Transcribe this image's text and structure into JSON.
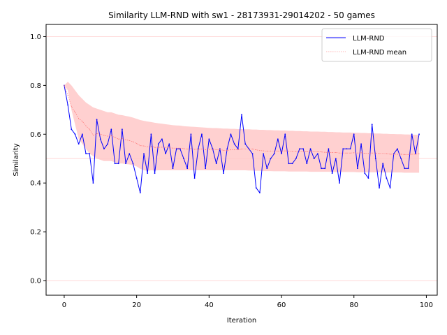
{
  "chart_data": {
    "type": "line",
    "title": "Similarity LLM-RND with sw1 - 28173931-29014202 - 50 games",
    "xlabel": "Iteration",
    "ylabel": "Similarity",
    "xlim": [
      -5,
      103
    ],
    "ylim": [
      -0.06,
      1.05
    ],
    "xticks": [
      0,
      20,
      40,
      60,
      80,
      100
    ],
    "yticks": [
      0.0,
      0.2,
      0.4,
      0.6,
      0.8,
      1.0
    ],
    "xtick_labels": [
      "0",
      "20",
      "40",
      "60",
      "80",
      "100"
    ],
    "ytick_labels": [
      "0.0",
      "0.2",
      "0.4",
      "0.6",
      "0.8",
      "1.0"
    ],
    "reference_lines": [
      0.0,
      0.5,
      1.0
    ],
    "grid": false,
    "legend_position": "top-right",
    "colors": {
      "series": "#0000ff",
      "mean": "#ff6b6b",
      "band": "#ffc8c8",
      "reference": "#ffd9d9"
    },
    "x": [
      0,
      1,
      2,
      3,
      4,
      5,
      6,
      7,
      8,
      9,
      10,
      11,
      12,
      13,
      14,
      15,
      16,
      17,
      18,
      19,
      20,
      21,
      22,
      23,
      24,
      25,
      26,
      27,
      28,
      29,
      30,
      31,
      32,
      33,
      34,
      35,
      36,
      37,
      38,
      39,
      40,
      41,
      42,
      43,
      44,
      45,
      46,
      47,
      48,
      49,
      50,
      51,
      52,
      53,
      54,
      55,
      56,
      57,
      58,
      59,
      60,
      61,
      62,
      63,
      64,
      65,
      66,
      67,
      68,
      69,
      70,
      71,
      72,
      73,
      74,
      75,
      76,
      77,
      78,
      79,
      80,
      81,
      82,
      83,
      84,
      85,
      86,
      87,
      88,
      89,
      90,
      91,
      92,
      93,
      94,
      95,
      96,
      97,
      98
    ],
    "series": [
      {
        "name": "LLM-RND",
        "values": [
          0.8,
          0.72,
          0.62,
          0.6,
          0.56,
          0.6,
          0.52,
          0.52,
          0.4,
          0.66,
          0.58,
          0.54,
          0.56,
          0.62,
          0.48,
          0.48,
          0.62,
          0.48,
          0.52,
          0.48,
          0.42,
          0.36,
          0.52,
          0.44,
          0.6,
          0.44,
          0.56,
          0.58,
          0.52,
          0.56,
          0.46,
          0.54,
          0.54,
          0.5,
          0.46,
          0.6,
          0.42,
          0.54,
          0.6,
          0.46,
          0.58,
          0.54,
          0.48,
          0.54,
          0.44,
          0.54,
          0.6,
          0.56,
          0.54,
          0.68,
          0.56,
          0.54,
          0.52,
          0.38,
          0.36,
          0.52,
          0.46,
          0.5,
          0.52,
          0.58,
          0.52,
          0.6,
          0.48,
          0.48,
          0.5,
          0.54,
          0.54,
          0.48,
          0.54,
          0.5,
          0.52,
          0.46,
          0.46,
          0.54,
          0.44,
          0.5,
          0.4,
          0.54,
          0.54,
          0.54,
          0.6,
          0.46,
          0.56,
          0.44,
          0.42,
          0.64,
          0.5,
          0.38,
          0.48,
          0.42,
          0.38,
          0.52,
          0.54,
          0.5,
          0.46,
          0.46,
          0.6,
          0.52,
          0.6
        ]
      },
      {
        "name": "LLM-RND mean",
        "values": [
          0.8,
          0.76,
          0.713,
          0.69,
          0.664,
          0.653,
          0.634,
          0.62,
          0.596,
          0.602,
          0.6,
          0.595,
          0.592,
          0.594,
          0.587,
          0.58,
          0.582,
          0.577,
          0.574,
          0.569,
          0.562,
          0.553,
          0.552,
          0.548,
          0.55,
          0.546,
          0.546,
          0.547,
          0.546,
          0.546,
          0.543,
          0.543,
          0.543,
          0.541,
          0.539,
          0.541,
          0.538,
          0.538,
          0.539,
          0.537,
          0.538,
          0.538,
          0.537,
          0.537,
          0.534,
          0.534,
          0.536,
          0.536,
          0.536,
          0.539,
          0.539,
          0.539,
          0.539,
          0.536,
          0.533,
          0.532,
          0.531,
          0.531,
          0.53,
          0.531,
          0.531,
          0.532,
          0.53,
          0.529,
          0.529,
          0.529,
          0.529,
          0.528,
          0.528,
          0.528,
          0.528,
          0.527,
          0.526,
          0.526,
          0.525,
          0.525,
          0.523,
          0.523,
          0.523,
          0.523,
          0.524,
          0.523,
          0.524,
          0.522,
          0.521,
          0.523,
          0.523,
          0.521,
          0.521,
          0.52,
          0.518,
          0.518,
          0.518,
          0.518,
          0.517,
          0.517,
          0.518,
          0.518,
          0.519
        ]
      }
    ],
    "band": {
      "upper": [
        0.8,
        0.815,
        0.8,
        0.78,
        0.76,
        0.745,
        0.73,
        0.72,
        0.71,
        0.705,
        0.7,
        0.695,
        0.69,
        0.69,
        0.685,
        0.68,
        0.678,
        0.675,
        0.672,
        0.668,
        0.663,
        0.658,
        0.655,
        0.652,
        0.65,
        0.647,
        0.645,
        0.643,
        0.641,
        0.639,
        0.637,
        0.636,
        0.635,
        0.633,
        0.632,
        0.631,
        0.63,
        0.629,
        0.628,
        0.627,
        0.626,
        0.625,
        0.625,
        0.624,
        0.623,
        0.623,
        0.622,
        0.622,
        0.621,
        0.621,
        0.62,
        0.62,
        0.619,
        0.619,
        0.618,
        0.618,
        0.617,
        0.617,
        0.616,
        0.616,
        0.615,
        0.615,
        0.614,
        0.614,
        0.613,
        0.613,
        0.612,
        0.612,
        0.611,
        0.611,
        0.611,
        0.61,
        0.61,
        0.609,
        0.609,
        0.608,
        0.608,
        0.607,
        0.607,
        0.607,
        0.606,
        0.606,
        0.605,
        0.605,
        0.604,
        0.604,
        0.603,
        0.603,
        0.602,
        0.602,
        0.601,
        0.601,
        0.6,
        0.6,
        0.599,
        0.599,
        0.598,
        0.598,
        0.597
      ],
      "lower": [
        0.8,
        0.78,
        0.7,
        0.64,
        0.58,
        0.56,
        0.54,
        0.52,
        0.51,
        0.5,
        0.495,
        0.49,
        0.49,
        0.49,
        0.485,
        0.48,
        0.48,
        0.478,
        0.476,
        0.473,
        0.468,
        0.458,
        0.452,
        0.45,
        0.452,
        0.451,
        0.452,
        0.452,
        0.452,
        0.452,
        0.452,
        0.452,
        0.452,
        0.452,
        0.452,
        0.452,
        0.452,
        0.452,
        0.452,
        0.452,
        0.452,
        0.452,
        0.452,
        0.452,
        0.452,
        0.452,
        0.452,
        0.452,
        0.452,
        0.452,
        0.452,
        0.451,
        0.451,
        0.45,
        0.45,
        0.449,
        0.449,
        0.449,
        0.448,
        0.448,
        0.448,
        0.448,
        0.447,
        0.447,
        0.447,
        0.447,
        0.447,
        0.447,
        0.446,
        0.446,
        0.446,
        0.446,
        0.446,
        0.446,
        0.445,
        0.445,
        0.445,
        0.445,
        0.445,
        0.445,
        0.445,
        0.444,
        0.444,
        0.444,
        0.444,
        0.444,
        0.444,
        0.444,
        0.443,
        0.443,
        0.443,
        0.443,
        0.443,
        0.443,
        0.442,
        0.442,
        0.442,
        0.442,
        0.442
      ]
    }
  }
}
